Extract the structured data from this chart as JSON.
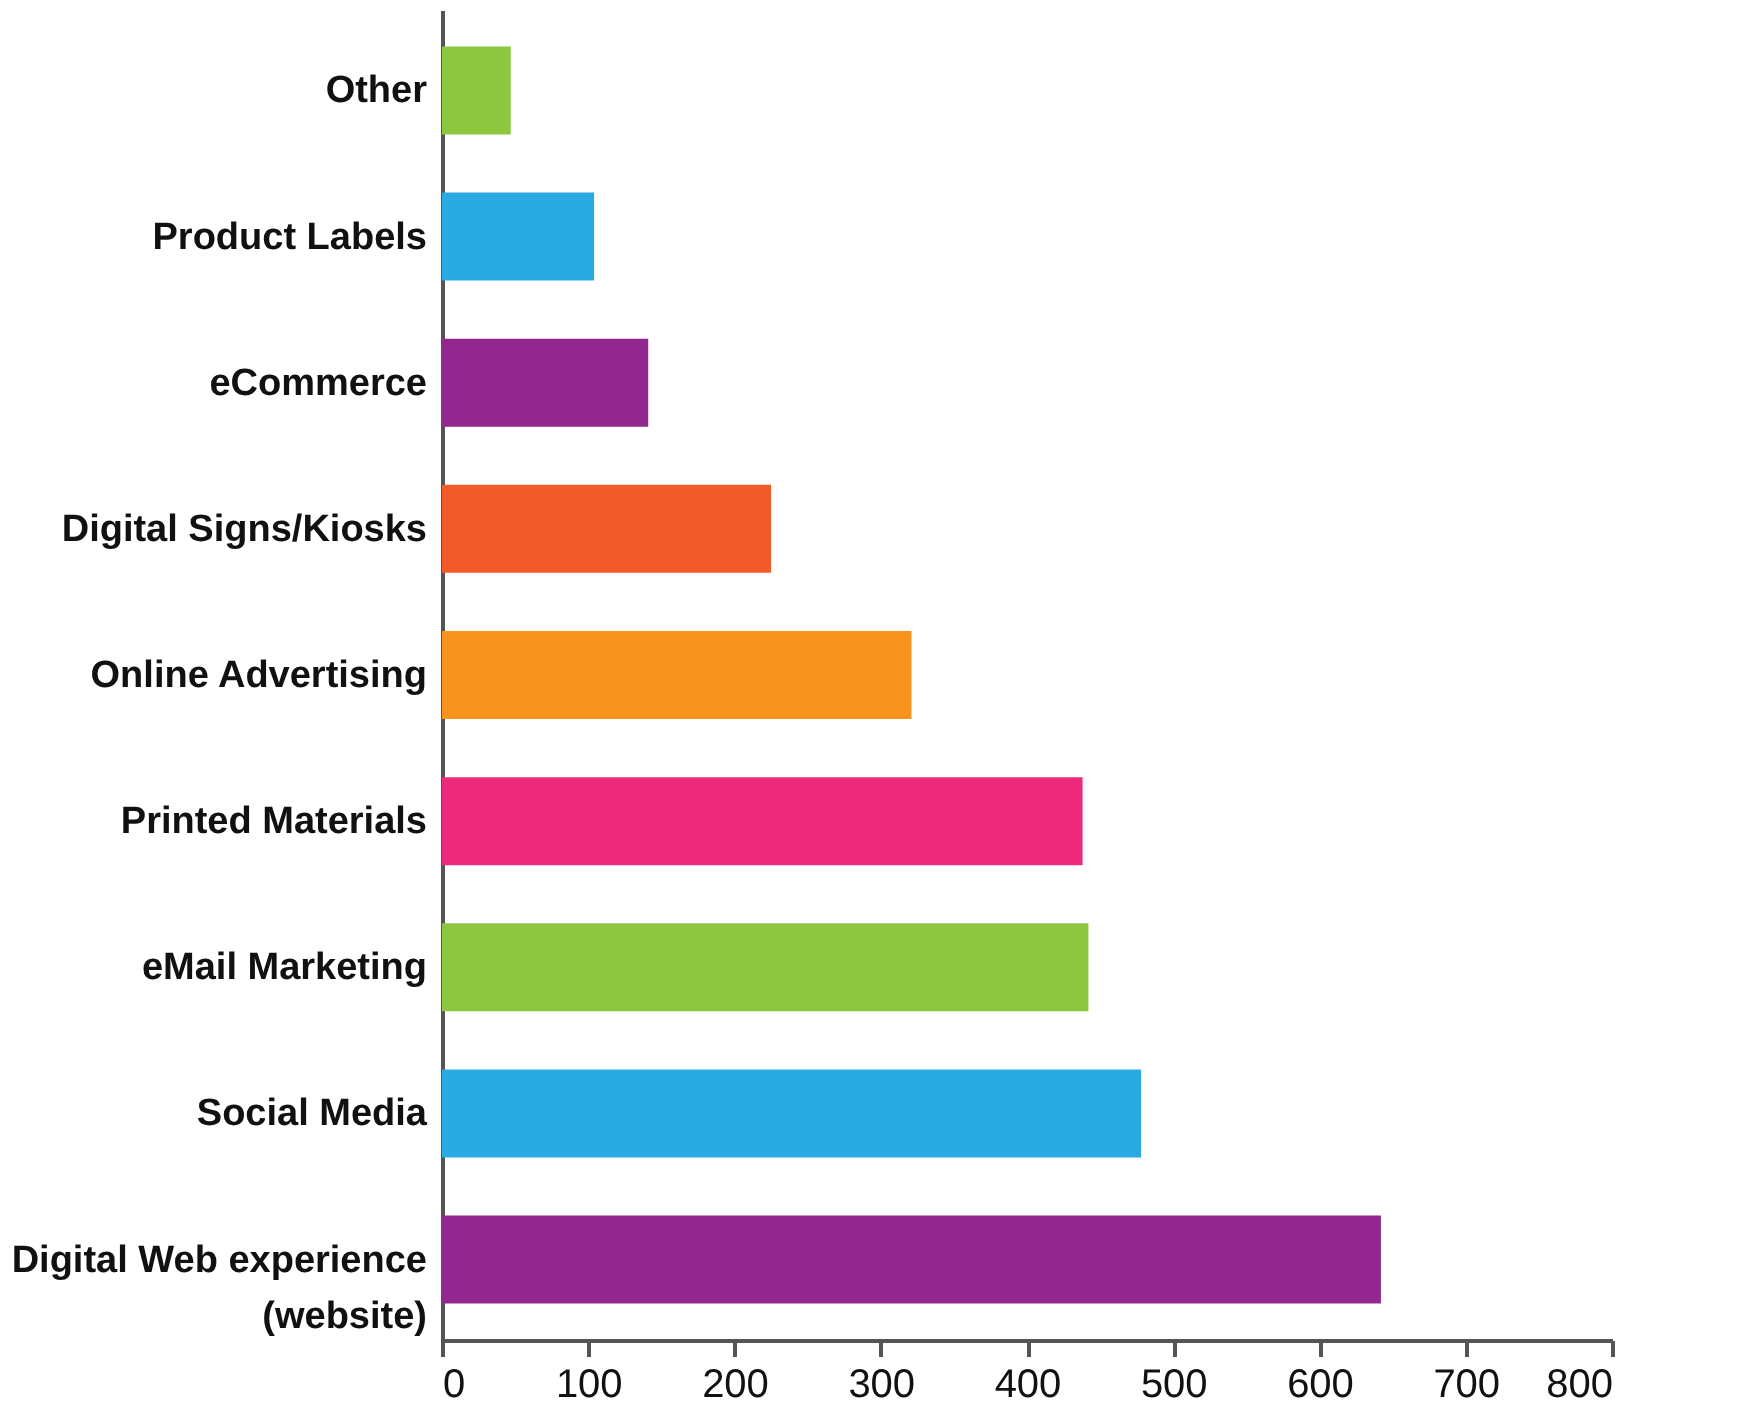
{
  "chart_data": {
    "type": "bar",
    "orientation": "horizontal",
    "categories": [
      "Other",
      "Product Labels",
      "eCommerce",
      "Digital Signs/Kiosks",
      "Online Advertising",
      "Printed Materials",
      "eMail Marketing",
      "Social Media",
      "Digital Web experience\n(website)"
    ],
    "values": [
      47,
      104,
      141,
      225,
      321,
      438,
      442,
      478,
      642
    ],
    "colors": [
      "#8dc63f",
      "#29abe2",
      "#92278f",
      "#f15a29",
      "#f7941d",
      "#ed2a7b",
      "#8dc63f",
      "#29abe2",
      "#92278f"
    ],
    "xlim": [
      0,
      800
    ],
    "xticks": [
      0,
      100,
      200,
      300,
      400,
      500,
      600,
      700,
      800
    ],
    "grid": false
  }
}
